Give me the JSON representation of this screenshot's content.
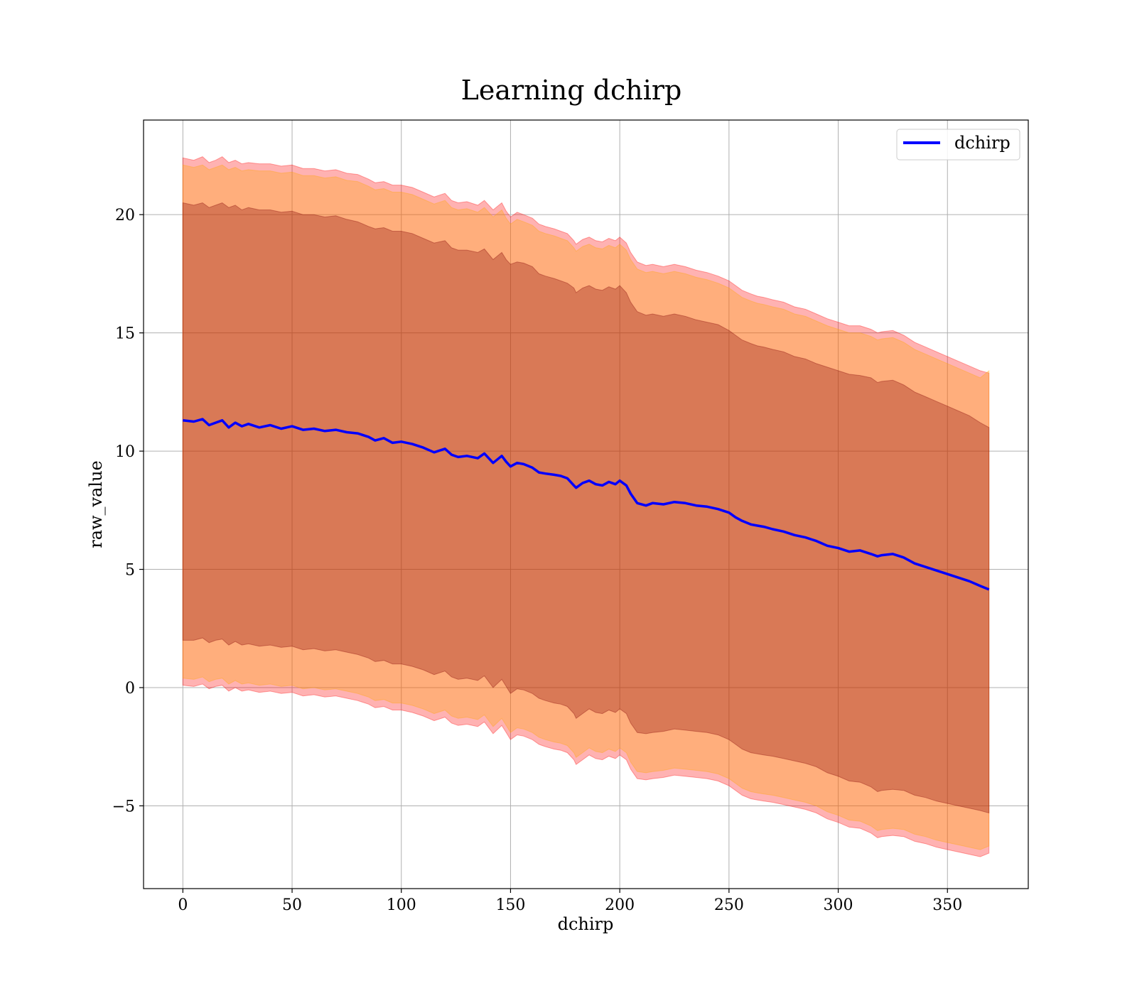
{
  "chart_data": {
    "type": "line",
    "title": "Learning dchirp",
    "xlabel": "dchirp",
    "ylabel": "raw_value",
    "xlim": [
      -18,
      387
    ],
    "ylim": [
      -8.5,
      24
    ],
    "xticks": [
      0,
      50,
      100,
      150,
      200,
      250,
      300,
      350
    ],
    "xtick_labels": [
      "0",
      "50",
      "100",
      "150",
      "200",
      "250",
      "300",
      "350"
    ],
    "yticks": [
      -5,
      0,
      5,
      10,
      15,
      20
    ],
    "ytick_labels": [
      "−5",
      "0",
      "5",
      "10",
      "15",
      "20"
    ],
    "grid": true,
    "legend": {
      "position": "top-right",
      "entries": [
        "dchirp"
      ]
    },
    "colors": {
      "line": "#0000ff",
      "outer_band": "#ff0000",
      "middle_band": "#ffa500",
      "inner_band": "#800000"
    },
    "band_opacity": 0.3,
    "series": [
      {
        "name": "dchirp",
        "x": [
          0,
          5,
          9,
          12,
          15,
          18,
          21,
          24,
          27,
          30,
          35,
          40,
          45,
          50,
          55,
          60,
          65,
          70,
          75,
          80,
          85,
          88,
          92,
          96,
          100,
          105,
          110,
          115,
          120,
          123,
          126,
          130,
          135,
          138,
          142,
          146,
          148,
          150,
          153,
          156,
          160,
          163,
          166,
          170,
          173,
          176,
          179,
          180,
          183,
          186,
          189,
          192,
          195,
          198,
          200,
          203,
          205,
          208,
          212,
          215,
          220,
          225,
          230,
          235,
          240,
          245,
          250,
          253,
          256,
          260,
          263,
          266,
          270,
          275,
          280,
          285,
          290,
          295,
          300,
          305,
          310,
          315,
          318,
          320,
          325,
          330,
          335,
          340,
          345,
          350,
          355,
          360,
          365,
          369
        ],
        "values": [
          11.3,
          11.25,
          11.35,
          11.1,
          11.2,
          11.3,
          11.0,
          11.2,
          11.05,
          11.15,
          11.0,
          11.1,
          10.95,
          11.05,
          10.9,
          10.95,
          10.85,
          10.9,
          10.8,
          10.75,
          10.6,
          10.45,
          10.55,
          10.35,
          10.4,
          10.3,
          10.15,
          9.95,
          10.1,
          9.85,
          9.75,
          9.8,
          9.7,
          9.9,
          9.5,
          9.8,
          9.55,
          9.35,
          9.5,
          9.45,
          9.3,
          9.1,
          9.05,
          9.0,
          8.95,
          8.85,
          8.55,
          8.45,
          8.65,
          8.75,
          8.6,
          8.55,
          8.7,
          8.6,
          8.75,
          8.55,
          8.2,
          7.8,
          7.7,
          7.8,
          7.75,
          7.85,
          7.8,
          7.7,
          7.65,
          7.55,
          7.4,
          7.2,
          7.05,
          6.9,
          6.85,
          6.8,
          6.7,
          6.6,
          6.45,
          6.35,
          6.2,
          6.0,
          5.9,
          5.75,
          5.8,
          5.65,
          5.55,
          5.6,
          5.65,
          5.5,
          5.25,
          5.1,
          4.95,
          4.8,
          4.65,
          4.5,
          4.3,
          4.15
        ],
        "upper_inner": [
          20.5,
          20.4,
          20.5,
          20.3,
          20.4,
          20.5,
          20.3,
          20.4,
          20.2,
          20.3,
          20.2,
          20.2,
          20.1,
          20.15,
          20.0,
          20.0,
          19.9,
          19.95,
          19.8,
          19.7,
          19.5,
          19.4,
          19.45,
          19.3,
          19.3,
          19.2,
          19.0,
          18.8,
          18.9,
          18.6,
          18.5,
          18.5,
          18.4,
          18.55,
          18.1,
          18.4,
          18.1,
          17.9,
          18.0,
          17.95,
          17.8,
          17.5,
          17.4,
          17.3,
          17.2,
          17.1,
          16.9,
          16.7,
          16.9,
          17.0,
          16.85,
          16.8,
          16.95,
          16.85,
          17.0,
          16.7,
          16.3,
          15.9,
          15.75,
          15.8,
          15.7,
          15.8,
          15.7,
          15.55,
          15.45,
          15.35,
          15.1,
          14.9,
          14.7,
          14.55,
          14.45,
          14.4,
          14.3,
          14.2,
          14.0,
          13.9,
          13.7,
          13.55,
          13.4,
          13.25,
          13.2,
          13.1,
          12.9,
          12.95,
          13.0,
          12.8,
          12.5,
          12.3,
          12.1,
          11.9,
          11.7,
          11.5,
          11.2,
          11.0
        ],
        "lower_inner": [
          2.0,
          2.0,
          2.1,
          1.9,
          2.0,
          2.05,
          1.8,
          1.95,
          1.8,
          1.85,
          1.75,
          1.8,
          1.7,
          1.75,
          1.6,
          1.65,
          1.55,
          1.6,
          1.5,
          1.4,
          1.25,
          1.1,
          1.15,
          1.0,
          1.0,
          0.9,
          0.75,
          0.55,
          0.7,
          0.45,
          0.35,
          0.4,
          0.3,
          0.5,
          0.0,
          0.35,
          0.05,
          -0.25,
          -0.05,
          -0.1,
          -0.25,
          -0.45,
          -0.55,
          -0.65,
          -0.7,
          -0.8,
          -1.1,
          -1.3,
          -1.1,
          -0.9,
          -1.05,
          -1.1,
          -0.95,
          -1.05,
          -0.9,
          -1.1,
          -1.5,
          -1.9,
          -1.95,
          -1.9,
          -1.85,
          -1.75,
          -1.8,
          -1.85,
          -1.9,
          -2.0,
          -2.2,
          -2.4,
          -2.6,
          -2.75,
          -2.8,
          -2.85,
          -2.9,
          -3.0,
          -3.1,
          -3.2,
          -3.35,
          -3.6,
          -3.75,
          -3.95,
          -4.0,
          -4.2,
          -4.4,
          -4.35,
          -4.3,
          -4.35,
          -4.55,
          -4.65,
          -4.8,
          -4.9,
          -5.0,
          -5.1,
          -5.2,
          -5.3
        ],
        "upper_middle": [
          22.1,
          22.0,
          22.1,
          21.9,
          22.0,
          22.1,
          21.9,
          22.0,
          21.85,
          21.9,
          21.85,
          21.85,
          21.75,
          21.8,
          21.65,
          21.65,
          21.55,
          21.6,
          21.45,
          21.4,
          21.2,
          21.05,
          21.1,
          20.95,
          20.95,
          20.85,
          20.65,
          20.45,
          20.6,
          20.3,
          20.2,
          20.25,
          20.1,
          20.3,
          19.9,
          20.2,
          19.85,
          19.6,
          19.8,
          19.7,
          19.55,
          19.3,
          19.2,
          19.1,
          19.0,
          18.9,
          18.6,
          18.45,
          18.65,
          18.75,
          18.6,
          18.55,
          18.7,
          18.6,
          18.75,
          18.5,
          18.1,
          17.7,
          17.55,
          17.6,
          17.5,
          17.6,
          17.5,
          17.35,
          17.25,
          17.1,
          16.9,
          16.7,
          16.5,
          16.35,
          16.25,
          16.2,
          16.1,
          16.0,
          15.8,
          15.7,
          15.5,
          15.3,
          15.15,
          15.0,
          15.0,
          14.85,
          14.7,
          14.75,
          14.8,
          14.6,
          14.3,
          14.1,
          13.9,
          13.7,
          13.5,
          13.3,
          13.1,
          13.4
        ],
        "lower_middle": [
          0.4,
          0.35,
          0.45,
          0.25,
          0.35,
          0.4,
          0.15,
          0.3,
          0.15,
          0.2,
          0.1,
          0.15,
          0.05,
          0.1,
          -0.05,
          0.0,
          -0.1,
          -0.05,
          -0.15,
          -0.25,
          -0.4,
          -0.55,
          -0.5,
          -0.65,
          -0.65,
          -0.75,
          -0.9,
          -1.1,
          -0.95,
          -1.2,
          -1.3,
          -1.25,
          -1.35,
          -1.15,
          -1.65,
          -1.3,
          -1.6,
          -1.9,
          -1.7,
          -1.75,
          -1.9,
          -2.1,
          -2.2,
          -2.3,
          -2.35,
          -2.45,
          -2.75,
          -2.95,
          -2.75,
          -2.55,
          -2.7,
          -2.75,
          -2.6,
          -2.7,
          -2.55,
          -2.75,
          -3.15,
          -3.55,
          -3.6,
          -3.55,
          -3.5,
          -3.4,
          -3.45,
          -3.5,
          -3.55,
          -3.65,
          -3.85,
          -4.05,
          -4.25,
          -4.4,
          -4.45,
          -4.5,
          -4.55,
          -4.65,
          -4.75,
          -4.85,
          -5.0,
          -5.25,
          -5.4,
          -5.6,
          -5.65,
          -5.85,
          -6.05,
          -6.0,
          -5.95,
          -6.0,
          -6.2,
          -6.3,
          -6.45,
          -6.55,
          -6.65,
          -6.75,
          -6.85,
          -6.7
        ],
        "upper_outer": [
          22.4,
          22.3,
          22.45,
          22.2,
          22.3,
          22.45,
          22.2,
          22.3,
          22.15,
          22.2,
          22.15,
          22.15,
          22.05,
          22.1,
          21.95,
          21.95,
          21.85,
          21.9,
          21.75,
          21.7,
          21.5,
          21.35,
          21.4,
          21.25,
          21.25,
          21.15,
          20.95,
          20.75,
          20.9,
          20.6,
          20.5,
          20.55,
          20.4,
          20.6,
          20.2,
          20.5,
          20.15,
          19.9,
          20.1,
          20.0,
          19.85,
          19.6,
          19.5,
          19.4,
          19.3,
          19.2,
          18.9,
          18.75,
          18.95,
          19.05,
          18.9,
          18.85,
          19.0,
          18.9,
          19.05,
          18.8,
          18.4,
          18.0,
          17.85,
          17.9,
          17.8,
          17.9,
          17.8,
          17.65,
          17.55,
          17.4,
          17.2,
          17.0,
          16.8,
          16.65,
          16.55,
          16.5,
          16.4,
          16.3,
          16.1,
          16.0,
          15.8,
          15.6,
          15.45,
          15.3,
          15.3,
          15.15,
          15.0,
          15.05,
          15.1,
          14.9,
          14.6,
          14.4,
          14.2,
          14.0,
          13.8,
          13.6,
          13.4,
          13.3
        ],
        "lower_outer": [
          0.1,
          0.05,
          0.15,
          -0.05,
          0.05,
          0.1,
          -0.15,
          0.0,
          -0.15,
          -0.1,
          -0.2,
          -0.15,
          -0.25,
          -0.2,
          -0.35,
          -0.3,
          -0.4,
          -0.35,
          -0.45,
          -0.55,
          -0.7,
          -0.85,
          -0.8,
          -0.95,
          -0.95,
          -1.05,
          -1.2,
          -1.4,
          -1.25,
          -1.5,
          -1.6,
          -1.55,
          -1.65,
          -1.45,
          -1.95,
          -1.6,
          -1.9,
          -2.2,
          -2.0,
          -2.05,
          -2.2,
          -2.4,
          -2.5,
          -2.6,
          -2.65,
          -2.75,
          -3.05,
          -3.25,
          -3.05,
          -2.85,
          -3.0,
          -3.05,
          -2.9,
          -3.0,
          -2.85,
          -3.05,
          -3.45,
          -3.85,
          -3.9,
          -3.85,
          -3.8,
          -3.7,
          -3.75,
          -3.8,
          -3.85,
          -3.95,
          -4.15,
          -4.35,
          -4.55,
          -4.7,
          -4.75,
          -4.8,
          -4.85,
          -4.95,
          -5.05,
          -5.15,
          -5.3,
          -5.55,
          -5.7,
          -5.9,
          -5.95,
          -6.15,
          -6.35,
          -6.3,
          -6.25,
          -6.3,
          -6.5,
          -6.6,
          -6.75,
          -6.85,
          -6.95,
          -7.05,
          -7.15,
          -7.0
        ]
      }
    ]
  }
}
